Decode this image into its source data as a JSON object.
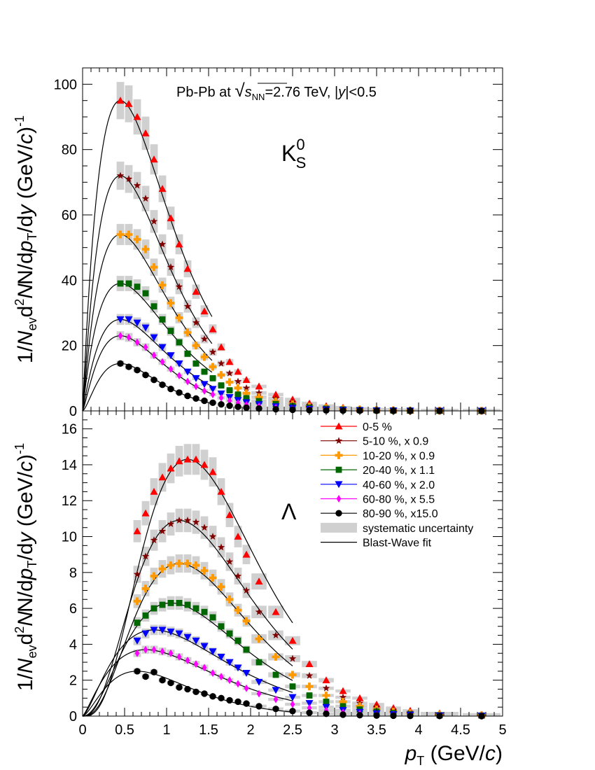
{
  "chart_data": [
    {
      "type": "scatter",
      "panel": "top",
      "title": "Pb-Pb at √sNN=2.76 TeV, |y|<0.5",
      "title_parts": {
        "prefix": "Pb-Pb at ",
        "sqrt": "√",
        "s": "s",
        "nn": "NN",
        "mid": "=2.76 TeV, |",
        "y": "y",
        "suffix": "|<0.5"
      },
      "particle_label": {
        "base": "K",
        "sup": "0",
        "sub": "S"
      },
      "xlim": [
        0,
        5
      ],
      "ylim": [
        0,
        105
      ],
      "xticks": [
        "0",
        "0.5",
        "1",
        "1.5",
        "2",
        "2.5",
        "3",
        "3.5",
        "4",
        "4.5",
        "5"
      ],
      "yticks": [
        "0",
        "20",
        "40",
        "60",
        "80",
        "100"
      ],
      "ytick_values": [
        0,
        20,
        40,
        60,
        80,
        100
      ],
      "ylabel": "1/Nev d2N/dpT/dy (GeV/c)-1",
      "x": [
        0.45,
        0.55,
        0.65,
        0.75,
        0.85,
        0.95,
        1.05,
        1.15,
        1.25,
        1.35,
        1.45,
        1.55,
        1.65,
        1.75,
        1.85,
        1.95,
        2.1,
        2.3,
        2.5,
        2.7,
        2.9,
        3.1,
        3.3,
        3.5,
        3.7,
        3.9,
        4.25,
        4.75
      ],
      "series": [
        {
          "name": "0-5 %",
          "color": "#ff0000",
          "marker": "triangle-up",
          "values": [
            95,
            94,
            90,
            85,
            77,
            68,
            59,
            51,
            43.5,
            36.5,
            30.5,
            25,
            19.5,
            15,
            12,
            9.5,
            7.5,
            5,
            3.5,
            2.3,
            1.5,
            1,
            0.6,
            0.4,
            0.3,
            0.2,
            0.1,
            0.05
          ]
        },
        {
          "name": "5-10 %, x 0.9",
          "color": "#800000",
          "marker": "star",
          "values": [
            72,
            71,
            69,
            65,
            58,
            51,
            44,
            38,
            32,
            27,
            22,
            18,
            14.5,
            11.5,
            9,
            7,
            5.5,
            3.8,
            2.7,
            1.8,
            1.2,
            0.8,
            0.5,
            0.35,
            0.25,
            0.15,
            0.08,
            0.04
          ]
        },
        {
          "name": "10-20 %, x 0.9",
          "color": "#ff9900",
          "marker": "cross",
          "values": [
            54,
            54,
            52.5,
            49.5,
            44,
            38.5,
            33,
            28.5,
            24,
            20,
            16.5,
            13.5,
            11,
            8.8,
            7,
            5.4,
            4.2,
            2.9,
            2,
            1.35,
            0.9,
            0.6,
            0.4,
            0.25,
            0.18,
            0.12,
            0.06,
            0.03
          ]
        },
        {
          "name": "20-40 %, x 1.1",
          "color": "#006600",
          "marker": "square",
          "values": [
            39,
            39,
            38,
            36,
            32,
            28,
            24.5,
            21,
            17.5,
            14.5,
            12,
            10,
            7.8,
            6.3,
            5,
            3.9,
            3,
            2.1,
            1.45,
            1,
            0.65,
            0.43,
            0.28,
            0.18,
            0.12,
            0.08,
            0.04,
            0.02
          ]
        },
        {
          "name": "40-60 %, x 2.0",
          "color": "#0000ff",
          "marker": "triangle-down",
          "values": [
            28,
            28,
            27,
            25.5,
            22.5,
            19.5,
            17,
            14.5,
            12,
            10,
            8.2,
            6.7,
            5.3,
            4.2,
            3.3,
            2.6,
            2,
            1.35,
            0.92,
            0.62,
            0.4,
            0.27,
            0.17,
            0.11,
            0.07,
            0.05,
            0.02,
            0.01
          ]
        },
        {
          "name": "60-80 %, x 5.5",
          "color": "#ff00ff",
          "marker": "diamond",
          "values": [
            23,
            22.5,
            21,
            19.5,
            17,
            15,
            12.8,
            10.8,
            9,
            7.5,
            6.1,
            5,
            4,
            3.1,
            2.4,
            1.9,
            1.45,
            1,
            0.66,
            0.44,
            0.29,
            0.19,
            0.12,
            0.08,
            0.05,
            0.03,
            0.015,
            0.007
          ]
        },
        {
          "name": "80-90 %, x15.0",
          "color": "#000000",
          "marker": "circle",
          "values": [
            14.5,
            13.5,
            12.5,
            11,
            9.5,
            8,
            6.7,
            5.6,
            4.6,
            3.8,
            3.1,
            2.5,
            2,
            1.6,
            1.25,
            0.98,
            0.73,
            0.49,
            0.33,
            0.22,
            0.14,
            0.09,
            0.06,
            0.04,
            0.025,
            0.015,
            0.008,
            0.004
          ]
        }
      ]
    },
    {
      "type": "scatter",
      "panel": "bottom",
      "particle_label": {
        "base": "Λ"
      },
      "xlim": [
        0,
        5
      ],
      "ylim": [
        0,
        17
      ],
      "xticks": [
        "0",
        "0.5",
        "1",
        "1.5",
        "2",
        "2.5",
        "3",
        "3.5",
        "4",
        "4.5",
        "5"
      ],
      "yticks": [
        "0",
        "2",
        "4",
        "6",
        "8",
        "10",
        "12",
        "14",
        "16"
      ],
      "ytick_values": [
        0,
        2,
        4,
        6,
        8,
        10,
        12,
        14,
        16
      ],
      "xlabel": "pT (GeV/c)",
      "ylabel": "1/Nev d2N/dpT/dy (GeV/c)-1",
      "x": [
        0.65,
        0.75,
        0.85,
        0.95,
        1.05,
        1.15,
        1.25,
        1.35,
        1.45,
        1.55,
        1.65,
        1.75,
        1.85,
        1.95,
        2.1,
        2.3,
        2.5,
        2.7,
        2.9,
        3.1,
        3.3,
        3.5,
        3.7,
        3.9,
        4.25,
        4.75
      ],
      "series": [
        {
          "name": "0-5 %",
          "color": "#ff0000",
          "marker": "triangle-up",
          "values": [
            10.3,
            11.3,
            12.5,
            13.3,
            13.8,
            14.2,
            14.3,
            14.3,
            14,
            13.6,
            12.5,
            11.2,
            10,
            9,
            7.5,
            5.8,
            4.2,
            2.9,
            2,
            1.4,
            1,
            0.65,
            0.45,
            0.3,
            0.15,
            0.08
          ]
        },
        {
          "name": "5-10 %, x 0.9",
          "color": "#800000",
          "marker": "star",
          "values": [
            7.9,
            8.9,
            9.8,
            10.3,
            10.7,
            10.9,
            10.9,
            10.8,
            10.5,
            10,
            9.4,
            8.6,
            7.8,
            7,
            5.8,
            4.5,
            3.2,
            2.25,
            1.55,
            1.05,
            0.72,
            0.5,
            0.34,
            0.22,
            0.11,
            0.05
          ]
        },
        {
          "name": "10-20 %, x 0.9",
          "color": "#ff9900",
          "marker": "cross",
          "values": [
            6.4,
            7.1,
            7.8,
            8.2,
            8.4,
            8.5,
            8.5,
            8.4,
            8.1,
            7.7,
            7.2,
            6.5,
            5.9,
            5.3,
            4.3,
            3.3,
            2.3,
            1.65,
            1.15,
            0.8,
            0.55,
            0.37,
            0.25,
            0.17,
            0.08,
            0.04
          ]
        },
        {
          "name": "20-40 %, x 1.1",
          "color": "#006600",
          "marker": "square",
          "values": [
            5.2,
            5.6,
            6,
            6.2,
            6.3,
            6.3,
            6.2,
            6,
            5.8,
            5.5,
            5,
            4.6,
            4.2,
            3.7,
            3,
            2.3,
            1.65,
            1.15,
            0.8,
            0.55,
            0.37,
            0.25,
            0.17,
            0.11,
            0.05,
            0.03
          ]
        },
        {
          "name": "40-60 %, x 2.0",
          "color": "#0000ff",
          "marker": "triangle-down",
          "values": [
            4.2,
            4.6,
            4.8,
            4.8,
            4.7,
            4.6,
            4.4,
            4.2,
            3.9,
            3.6,
            3.3,
            3,
            2.7,
            2.4,
            1.9,
            1.45,
            1.05,
            0.72,
            0.5,
            0.33,
            0.23,
            0.15,
            0.1,
            0.07,
            0.03,
            0.015
          ]
        },
        {
          "name": "60-80 %, x 5.5",
          "color": "#ff00ff",
          "marker": "diamond",
          "values": [
            3.5,
            3.7,
            3.7,
            3.6,
            3.5,
            3.3,
            3.1,
            2.9,
            2.7,
            2.4,
            2.2,
            2,
            1.8,
            1.55,
            1.25,
            0.93,
            0.66,
            0.46,
            0.32,
            0.21,
            0.14,
            0.09,
            0.06,
            0.04,
            0.02,
            0.008
          ]
        },
        {
          "name": "80-90 %, x15.0",
          "color": "#000000",
          "marker": "circle",
          "values": [
            2.5,
            2.2,
            2.45,
            2.0,
            1.85,
            1.6,
            1.5,
            1.35,
            1.25,
            1.1,
            1,
            0.88,
            0.8,
            0.7,
            0.55,
            0.4,
            0.28,
            0.19,
            0.13,
            0.08,
            0.05,
            0.03,
            0.02,
            0.012,
            0.006,
            0.003
          ]
        }
      ]
    }
  ],
  "legend": {
    "placement": "top-right of bottom panel",
    "entries": [
      {
        "label": "0-5   %",
        "color": "#ff0000",
        "marker": "triangle-up"
      },
      {
        "label": "5-10 %, x 0.9",
        "color": "#800000",
        "marker": "star"
      },
      {
        "label": "10-20 %, x 0.9",
        "color": "#ff9900",
        "marker": "cross"
      },
      {
        "label": "20-40 %, x 1.1",
        "color": "#006600",
        "marker": "square"
      },
      {
        "label": "40-60 %, x 2.0",
        "color": "#0000ff",
        "marker": "triangle-down"
      },
      {
        "label": "60-80 %, x 5.5",
        "color": "#ff00ff",
        "marker": "diamond"
      },
      {
        "label": "80-90 %, x15.0",
        "color": "#000000",
        "marker": "circle"
      }
    ],
    "syst_label": "systematic uncertainty",
    "fit_label": "Blast-Wave fit"
  },
  "axis_text": {
    "ylabel_prefix": "1/",
    "ylabel_N": "N",
    "ylabel_ev": "ev",
    "ylabel_d": "d",
    "ylabel_2": "2",
    "ylabel_mid": "N/d",
    "ylabel_p": "p",
    "ylabel_T": "T",
    "ylabel_dy": "/d",
    "ylabel_y": "y",
    "ylabel_unit_open": " (GeV/",
    "ylabel_c": "c",
    "ylabel_close": ")",
    "ylabel_minus1": "-1",
    "xlabel_p": "p",
    "xlabel_T": "T",
    "xlabel_unit_open": " (GeV/",
    "xlabel_c": "c",
    "xlabel_close": ")"
  },
  "colors": {
    "systematic": "#d0d0d0",
    "fit_line": "#000000",
    "frame": "#000000"
  }
}
